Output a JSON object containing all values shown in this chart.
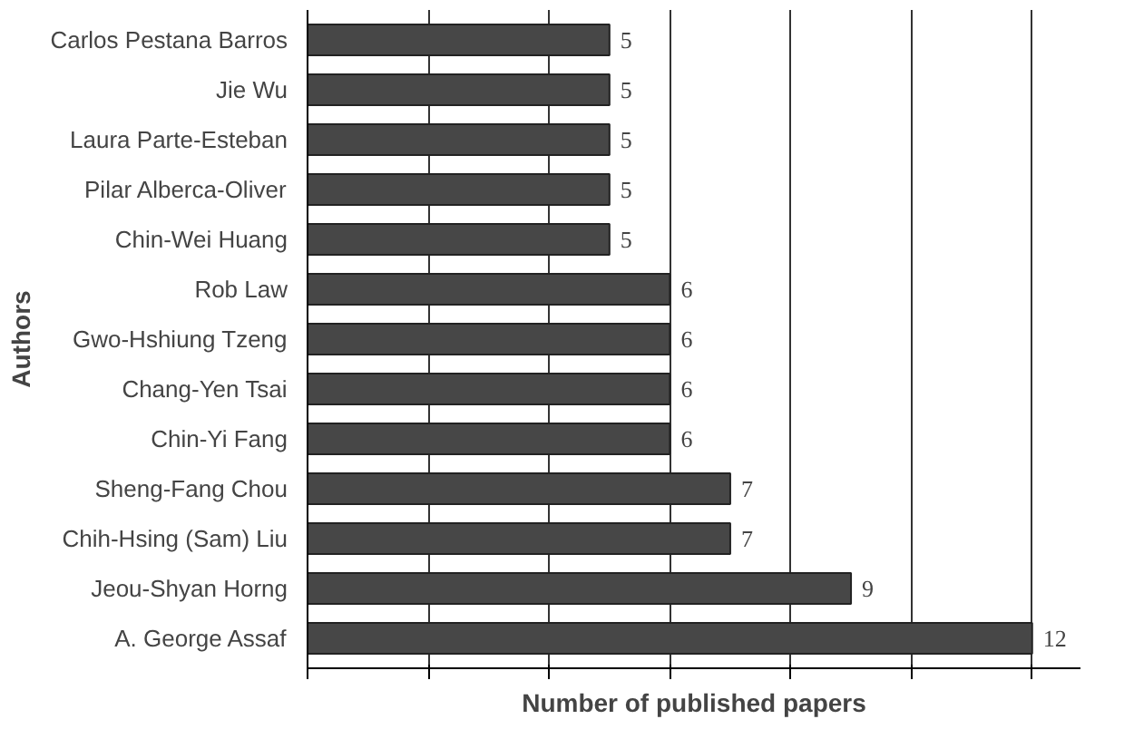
{
  "chart_data": {
    "type": "bar",
    "orientation": "horizontal",
    "xlabel": "Number of published papers",
    "ylabel": "Authors",
    "categories": [
      "Carlos Pestana Barros",
      "Jie Wu",
      "Laura Parte-Esteban",
      "Pilar Alberca-Oliver",
      "Chin-Wei Huang",
      "Rob Law",
      "Gwo-Hshiung Tzeng",
      "Chang-Yen Tsai",
      "Chin-Yi Fang",
      "Sheng-Fang Chou",
      "Chih-Hsing (Sam) Liu",
      "Jeou-Shyan Horng",
      "A. George Assaf"
    ],
    "values": [
      5,
      5,
      5,
      5,
      5,
      6,
      6,
      6,
      6,
      7,
      7,
      9,
      12
    ],
    "color": "#474747",
    "data_labels": true,
    "grid": "x",
    "tick_labels": "y",
    "xlim": [
      0,
      12.8
    ],
    "xticks": [
      {
        "value": 0,
        "label": null
      },
      {
        "value": 2,
        "label": null
      },
      {
        "value": 4,
        "label": null
      },
      {
        "value": 6,
        "label": null
      },
      {
        "value": 8,
        "label": null
      },
      {
        "value": 10,
        "label": null
      },
      {
        "value": 12,
        "label": null
      }
    ]
  }
}
